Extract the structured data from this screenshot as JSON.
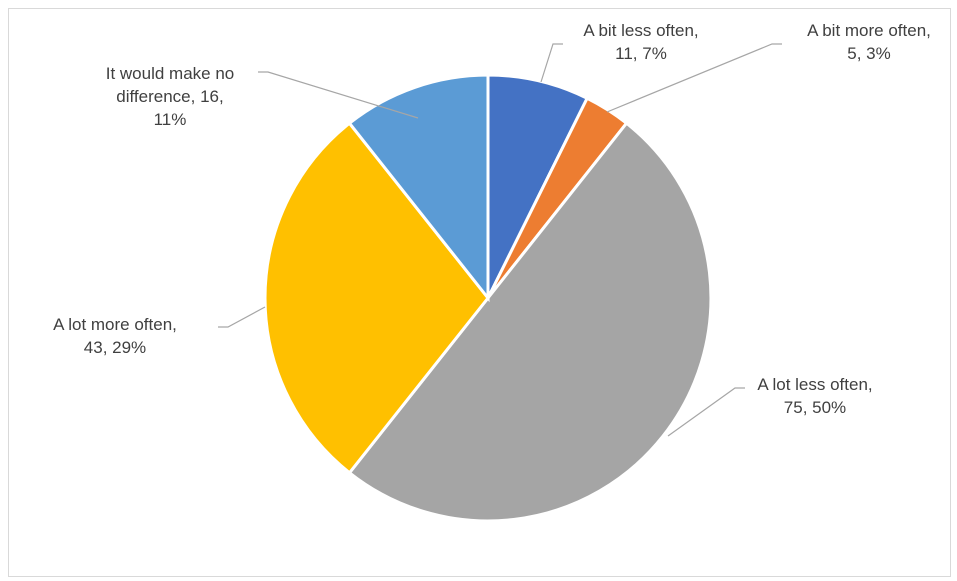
{
  "chart_data": {
    "type": "pie",
    "title": "",
    "slices": [
      {
        "label": "A bit less often",
        "value": 11,
        "percent": "7%",
        "color": "#4472c4"
      },
      {
        "label": "A bit more often",
        "value": 5,
        "percent": "3%",
        "color": "#ed7d31"
      },
      {
        "label": "A lot less often",
        "value": 75,
        "percent": "50%",
        "color": "#a5a5a5"
      },
      {
        "label": "A lot more often",
        "value": 43,
        "percent": "29%",
        "color": "#ffc000"
      },
      {
        "label": "It would make no difference",
        "value": 16,
        "percent": "11%",
        "color": "#5b9bd5"
      }
    ],
    "data_labels": [
      {
        "lines": [
          "A bit less often,",
          "11, 7%"
        ]
      },
      {
        "lines": [
          "A bit more often,",
          "5, 3%"
        ]
      },
      {
        "lines": [
          "A lot less often,",
          "75, 50%"
        ]
      },
      {
        "lines": [
          "A lot more often,",
          "43, 29%"
        ]
      },
      {
        "lines": [
          "It would make no",
          "difference, 16,",
          "11%"
        ]
      }
    ],
    "legend": "none",
    "start_angle": "12 o'clock, clockwise"
  }
}
